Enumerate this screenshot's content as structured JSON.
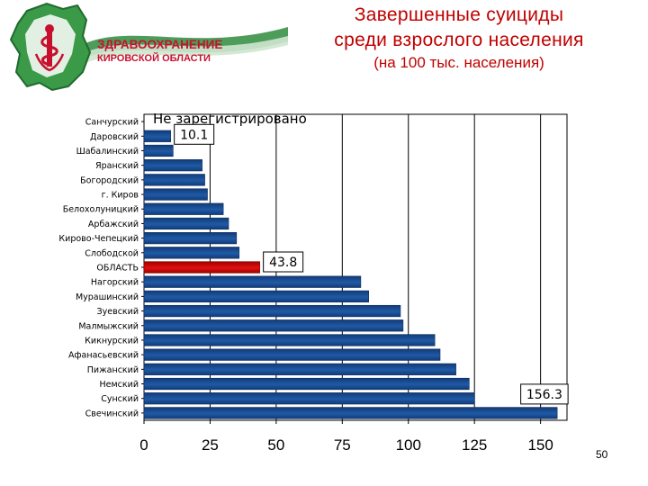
{
  "header": {
    "logo_line1": "ЗДРАВООХРАНЕНИЕ",
    "logo_line2": "КИРОВСКОЙ ОБЛАСТИ",
    "title_line1": "Завершенные суициды",
    "title_line2": "среди взрослого населения",
    "title_line3": "(на 100 тыс. населения)"
  },
  "page_number": "50",
  "colors": {
    "bar": "#1f5aa6",
    "bar_dark": "#123b78",
    "highlight_bar": "#e01010",
    "title": "#c00000",
    "logo_green": "#2e8b3c",
    "logo_red": "#c8102e"
  },
  "chart_data": {
    "type": "bar",
    "orientation": "horizontal",
    "categories": [
      "Санчурский",
      "Даровский",
      "Шабалинский",
      "Яранский",
      "Богородский",
      "г. Киров",
      "Белохолуницкий",
      "Арбажский",
      "Кирово-Чепецкий",
      "Слободской",
      "ОБЛАСТЬ",
      "Нагорский",
      "Мурашинский",
      "Зуевский",
      "Малмыжский",
      "Кикнурский",
      "Афанасьевский",
      "Пижанский",
      "Немский",
      "Сунский",
      "Свечинский"
    ],
    "values": [
      0,
      10.1,
      11,
      22,
      23,
      24,
      30,
      32,
      35,
      36,
      43.8,
      82,
      85,
      97,
      98,
      110,
      112,
      118,
      123,
      125,
      156.3
    ],
    "highlight_category": "ОБЛАСТЬ",
    "xlim": [
      0,
      160
    ],
    "xticks": [
      0,
      25,
      50,
      75,
      100,
      125,
      150
    ],
    "xlabel": "",
    "ylabel": "",
    "grid": "vertical",
    "legend": "none",
    "annotations": [
      {
        "category": "Санчурский",
        "text": "Не зарегистрировано"
      },
      {
        "category": "Даровский",
        "text": "10.1",
        "boxed": true
      },
      {
        "category": "ОБЛАСТЬ",
        "text": "43.8",
        "boxed": true
      },
      {
        "category": "Свечинский",
        "text": "156.3",
        "boxed": true
      }
    ]
  }
}
